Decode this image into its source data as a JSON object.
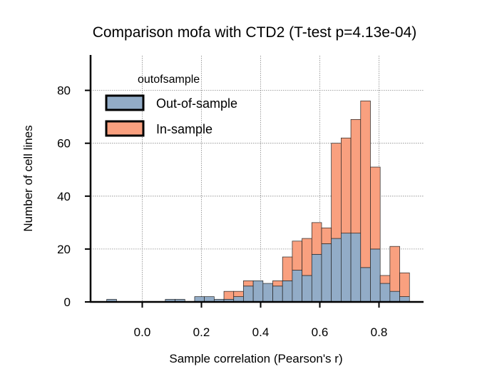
{
  "chart_data": {
    "type": "bar",
    "subtype": "stacked-histogram",
    "title": "Comparison mofa with CTD2 (T-test p=4.13e-04)",
    "xlabel": "Sample correlation (Pearson's r)",
    "ylabel": "Number of cell lines",
    "xlim": [
      -0.18,
      0.95
    ],
    "ylim": [
      0,
      93
    ],
    "xticks": [
      0.0,
      0.2,
      0.4,
      0.6,
      0.8
    ],
    "xtick_labels": [
      "0.0",
      "0.2",
      "0.4",
      "0.6",
      "0.8"
    ],
    "yticks": [
      0,
      20,
      40,
      60,
      80
    ],
    "ytick_labels": [
      "0",
      "20",
      "40",
      "60",
      "80"
    ],
    "grid": true,
    "legend_position": "top-left",
    "legend_title": "outofsample",
    "bin_width": 0.033,
    "bin_starts": [
      -0.12,
      -0.087,
      -0.054,
      -0.021,
      0.012,
      0.045,
      0.078,
      0.111,
      0.144,
      0.177,
      0.21,
      0.243,
      0.276,
      0.309,
      0.342,
      0.375,
      0.408,
      0.441,
      0.474,
      0.507,
      0.54,
      0.573,
      0.606,
      0.639,
      0.672,
      0.705,
      0.738,
      0.771,
      0.804,
      0.837,
      0.87
    ],
    "series": [
      {
        "name": "Out-of-sample",
        "color": "#92acc7",
        "values": [
          1,
          0,
          0,
          0,
          0,
          0,
          1,
          1,
          0,
          2,
          2,
          1,
          1,
          2,
          6,
          8,
          7,
          6,
          8,
          12,
          10,
          18,
          22,
          24,
          26,
          26,
          13,
          20,
          7,
          4,
          2
        ]
      },
      {
        "name": "In-sample",
        "color": "#f9a07f",
        "values": [
          0,
          0,
          0,
          0,
          0,
          0,
          0,
          0,
          0,
          0,
          0,
          0,
          3,
          2,
          2,
          0,
          0,
          2,
          9,
          11,
          14,
          12,
          6,
          36,
          36,
          43,
          63,
          31,
          3,
          17,
          9
        ]
      }
    ]
  }
}
